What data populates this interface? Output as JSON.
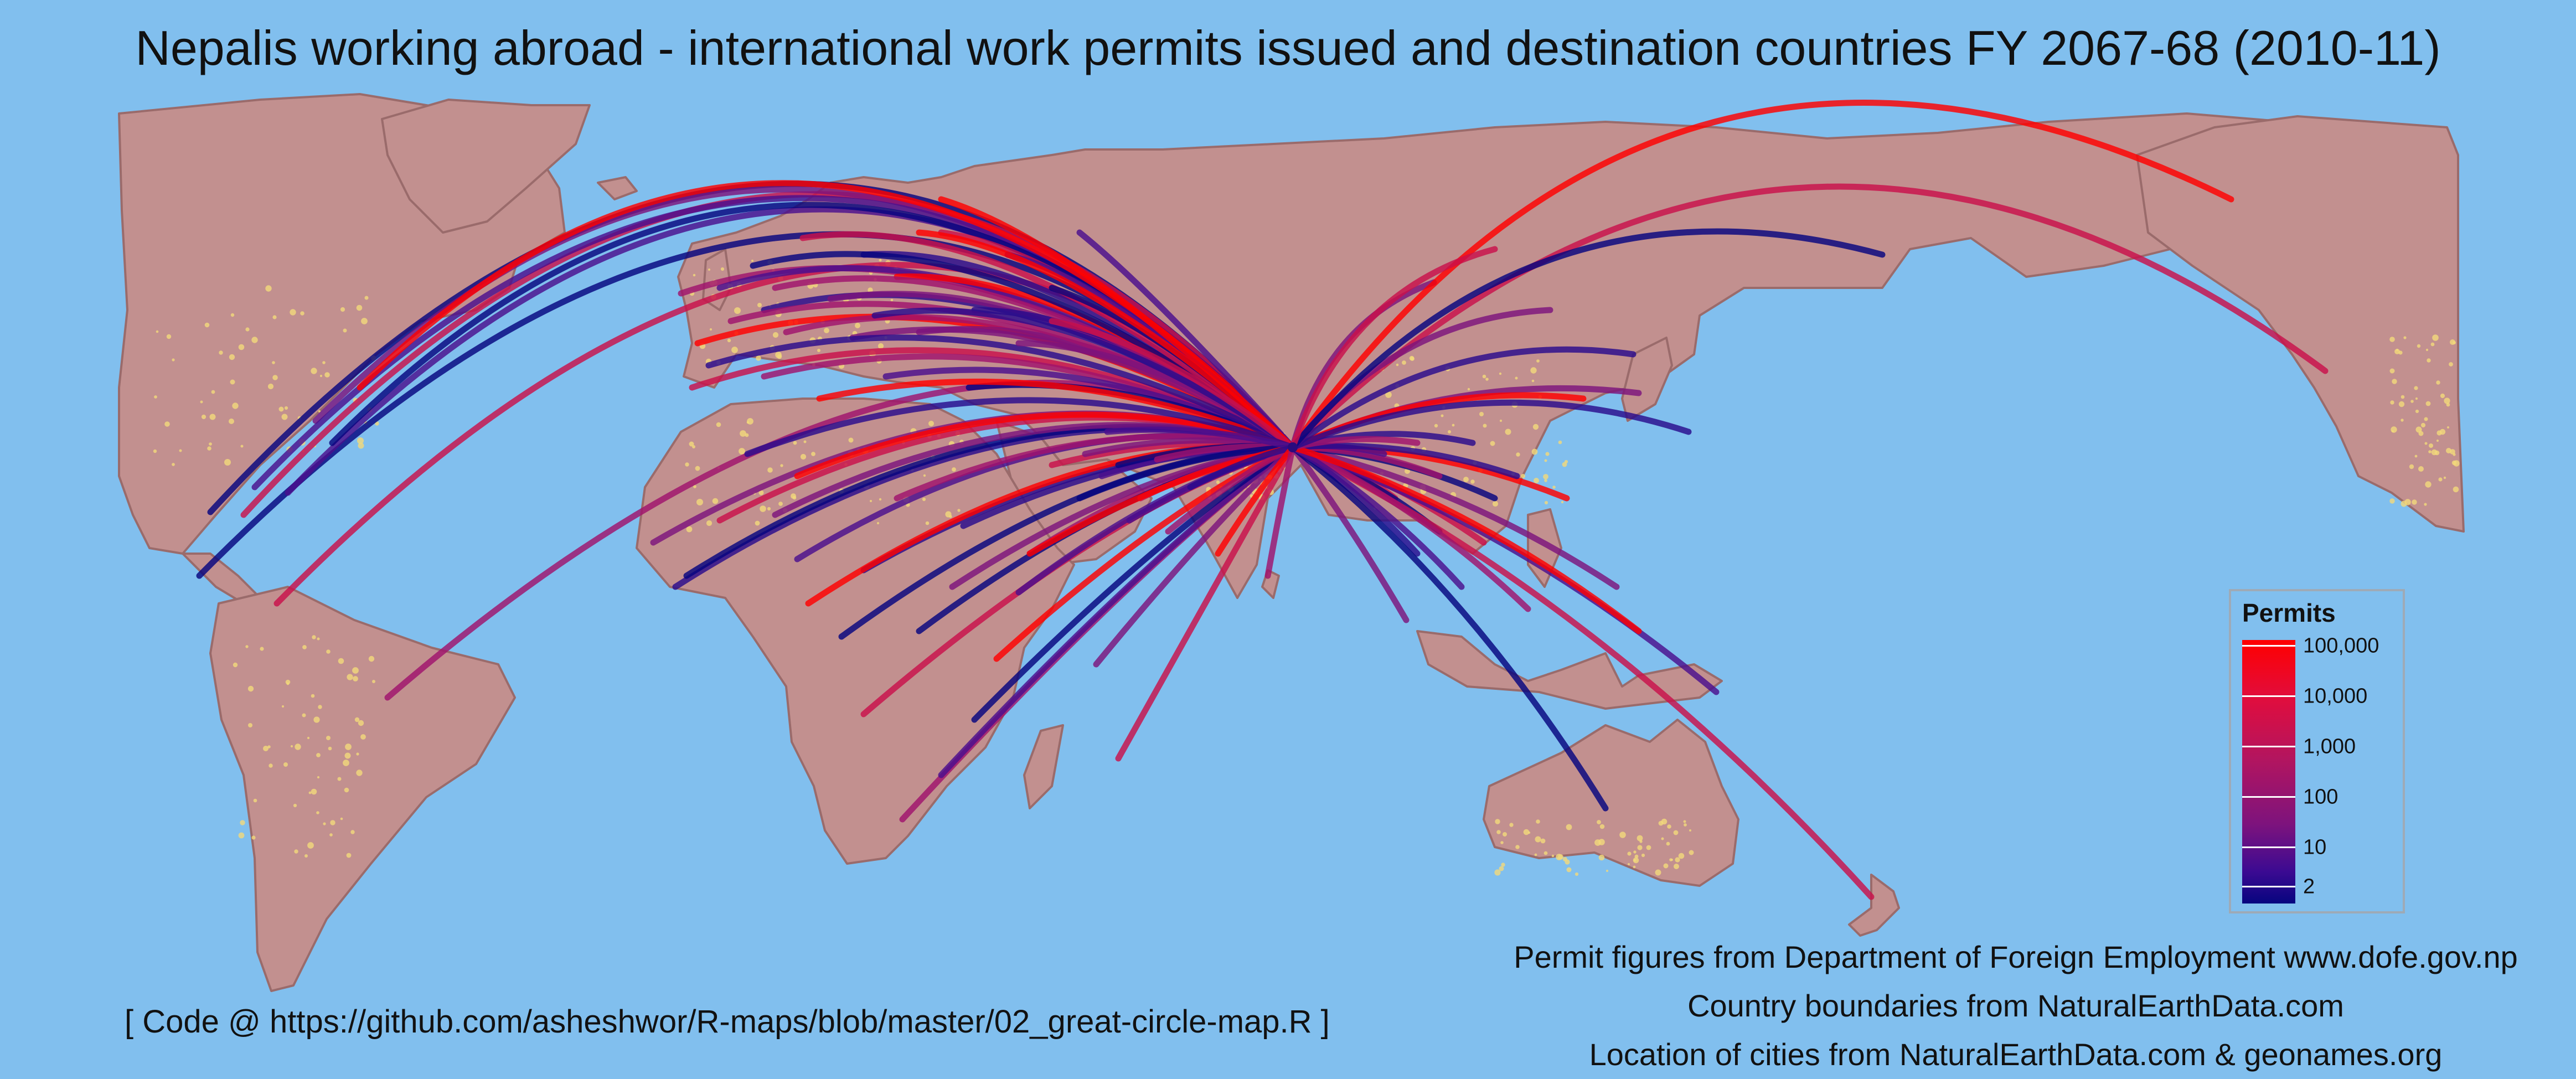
{
  "title": "Nepalis working abroad - international work permits issued and destination countries FY 2067-68 (2010-11)",
  "footer": {
    "code_note": "[ Code @ https://github.com/asheshwor/R-maps/blob/master/02_great-circle-map.R ]",
    "credits": [
      "Permit figures from Department of Foreign Employment www.dofe.gov.np",
      "Country boundaries from NaturalEarthData.com",
      "Location of cities from NaturalEarthData.com & geonames.org"
    ]
  },
  "legend": {
    "title": "Permits",
    "scale": "log",
    "colors": {
      "low": "#06057f",
      "mid": "#7d137d",
      "high": "#ff0000"
    },
    "labels": [
      "100,000",
      "10,000",
      "1,000",
      "100",
      "10",
      "2"
    ]
  },
  "map": {
    "ocean_color": "#81bfee",
    "land_color": "#c2908f",
    "city_lights_color": "#f3d97a",
    "origin": "Nepal",
    "route_counts": {
      "to_americas": 10,
      "to_europe": 30,
      "to_africa": 24,
      "to_middle_east": 14,
      "to_asia_pacific": 21,
      "to_russia_japan_usa_west": 8
    }
  }
}
